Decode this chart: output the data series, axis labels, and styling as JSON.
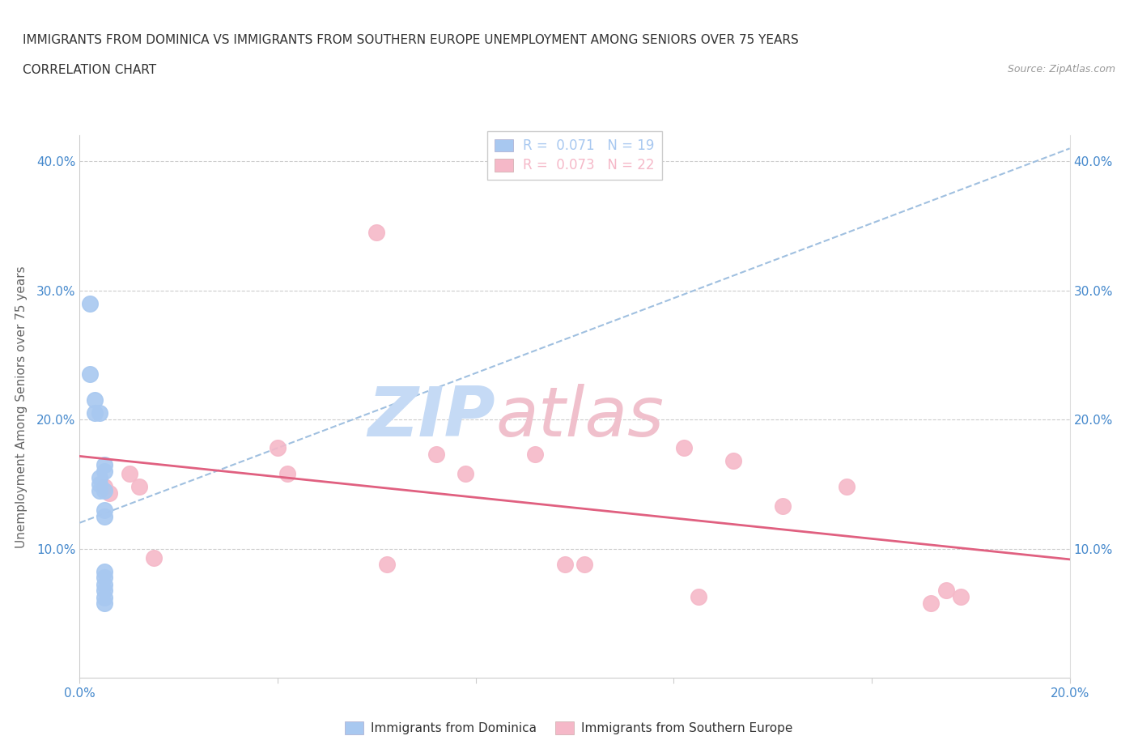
{
  "title_line1": "IMMIGRANTS FROM DOMINICA VS IMMIGRANTS FROM SOUTHERN EUROPE UNEMPLOYMENT AMONG SENIORS OVER 75 YEARS",
  "title_line2": "CORRELATION CHART",
  "source": "Source: ZipAtlas.com",
  "ylabel": "Unemployment Among Seniors over 75 years",
  "xlim": [
    0.0,
    0.2
  ],
  "ylim": [
    0.0,
    0.42
  ],
  "xticks": [
    0.0,
    0.04,
    0.08,
    0.12,
    0.16,
    0.2
  ],
  "yticks": [
    0.0,
    0.1,
    0.2,
    0.3,
    0.4
  ],
  "xticklabels": [
    "0.0%",
    "",
    "",
    "",
    "",
    "20.0%"
  ],
  "yticklabels": [
    "",
    "10.0%",
    "20.0%",
    "30.0%",
    "40.0%"
  ],
  "right_yticklabels": [
    "",
    "10.0%",
    "20.0%",
    "30.0%",
    "40.0%"
  ],
  "dominica_R": "0.071",
  "dominica_N": "19",
  "southern_R": "0.073",
  "southern_N": "22",
  "dominica_color": "#a8c8f0",
  "southern_color": "#f5b8c8",
  "dominica_line_color": "#5080c0",
  "southern_line_color": "#e06080",
  "trendline_dominica_color": "#a0c0e0",
  "watermark_zip": "ZIP",
  "watermark_atlas": "atlas",
  "watermark_color_zip": "#b8d4ee",
  "watermark_color_atlas": "#d4a0b0",
  "dominica_label": "Immigrants from Dominica",
  "southern_label": "Immigrants from Southern Europe",
  "dominica_x": [
    0.002,
    0.002,
    0.003,
    0.003,
    0.004,
    0.004,
    0.004,
    0.004,
    0.005,
    0.005,
    0.005,
    0.005,
    0.005,
    0.005,
    0.005,
    0.005,
    0.005,
    0.005,
    0.005
  ],
  "dominica_y": [
    0.29,
    0.235,
    0.215,
    0.205,
    0.205,
    0.155,
    0.15,
    0.145,
    0.16,
    0.13,
    0.125,
    0.082,
    0.078,
    0.165,
    0.145,
    0.072,
    0.068,
    0.062,
    0.058
  ],
  "southern_x": [
    0.005,
    0.006,
    0.01,
    0.012,
    0.015,
    0.04,
    0.042,
    0.06,
    0.062,
    0.072,
    0.078,
    0.092,
    0.098,
    0.102,
    0.122,
    0.125,
    0.132,
    0.142,
    0.155,
    0.172,
    0.175,
    0.178
  ],
  "southern_y": [
    0.148,
    0.143,
    0.158,
    0.148,
    0.093,
    0.178,
    0.158,
    0.345,
    0.088,
    0.173,
    0.158,
    0.173,
    0.088,
    0.088,
    0.178,
    0.063,
    0.168,
    0.133,
    0.148,
    0.058,
    0.068,
    0.063
  ]
}
